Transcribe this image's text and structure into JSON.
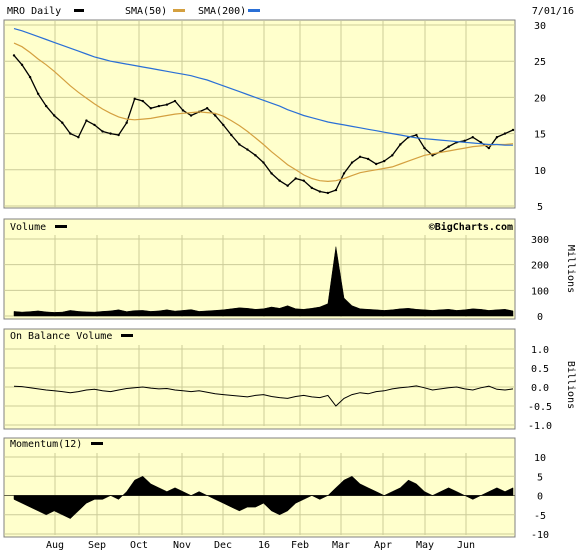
{
  "header": {
    "ticker_label": "MRO Daily",
    "sma50_label": "SMA(50)",
    "sma200_label": "SMA(200)",
    "date": "7/01/16"
  },
  "colors": {
    "background": "#ffffcc",
    "frame": "#808080",
    "grid": "#cccc99",
    "price": "#000000",
    "sma50": "#d4a040",
    "sma200": "#2a6fd6"
  },
  "volume_panel": {
    "label": "Volume",
    "copyright": "©BigCharts.com",
    "unit": "Millions"
  },
  "obv_panel": {
    "label": "On Balance Volume",
    "unit": "Billions"
  },
  "momentum_panel": {
    "label": "Momentum(12)"
  },
  "chart_data": [
    {
      "type": "line",
      "panel": "price",
      "ylim": [
        5,
        30
      ],
      "yticks": [
        "30",
        "25",
        "20",
        "15",
        "10",
        "5"
      ],
      "xticks": [
        "Aug",
        "Sep",
        "Oct",
        "Nov",
        "Dec",
        "16",
        "Feb",
        "Mar",
        "Apr",
        "May",
        "Jun"
      ],
      "series": [
        {
          "name": "MRO Daily",
          "values": [
            25.8,
            24.5,
            22.8,
            20.5,
            18.8,
            17.5,
            16.5,
            15.0,
            14.5,
            16.8,
            16.2,
            15.3,
            15.0,
            14.8,
            16.5,
            19.8,
            19.5,
            18.5,
            18.8,
            19.0,
            19.5,
            18.2,
            17.5,
            18.0,
            18.5,
            17.5,
            16.2,
            14.8,
            13.5,
            12.8,
            12.0,
            11.0,
            9.5,
            8.5,
            7.8,
            8.8,
            8.5,
            7.5,
            7.0,
            6.8,
            7.2,
            9.5,
            11.0,
            11.8,
            11.5,
            10.8,
            11.2,
            12.0,
            13.5,
            14.5,
            14.8,
            13.0,
            12.0,
            12.5,
            13.2,
            13.8,
            14.0,
            14.5,
            13.8,
            13.0,
            14.5,
            15.0,
            15.5
          ]
        },
        {
          "name": "SMA(50)",
          "values": [
            27.5,
            27.0,
            26.2,
            25.3,
            24.5,
            23.6,
            22.6,
            21.6,
            20.7,
            19.9,
            19.1,
            18.4,
            17.8,
            17.3,
            17.0,
            16.9,
            17.0,
            17.1,
            17.3,
            17.5,
            17.7,
            17.8,
            17.9,
            18.0,
            17.9,
            17.8,
            17.4,
            16.8,
            16.1,
            15.3,
            14.4,
            13.5,
            12.5,
            11.6,
            10.7,
            10.0,
            9.3,
            8.8,
            8.5,
            8.4,
            8.5,
            8.8,
            9.2,
            9.6,
            9.8,
            10.0,
            10.2,
            10.4,
            10.8,
            11.2,
            11.6,
            12.0,
            12.2,
            12.4,
            12.6,
            12.8,
            13.0,
            13.2,
            13.3,
            13.4,
            13.5,
            13.5,
            13.6
          ]
        },
        {
          "name": "SMA(200)",
          "values": [
            29.5,
            29.2,
            28.8,
            28.4,
            28.0,
            27.6,
            27.2,
            26.8,
            26.4,
            26.0,
            25.6,
            25.3,
            25.0,
            24.8,
            24.6,
            24.4,
            24.2,
            24.0,
            23.8,
            23.6,
            23.4,
            23.2,
            23.0,
            22.7,
            22.4,
            22.0,
            21.6,
            21.2,
            20.8,
            20.4,
            20.0,
            19.6,
            19.2,
            18.8,
            18.3,
            17.9,
            17.5,
            17.2,
            16.9,
            16.6,
            16.4,
            16.2,
            16.0,
            15.8,
            15.6,
            15.4,
            15.2,
            15.0,
            14.8,
            14.6,
            14.4,
            14.3,
            14.2,
            14.1,
            14.0,
            13.9,
            13.8,
            13.7,
            13.6,
            13.5,
            13.5,
            13.4,
            13.4
          ]
        }
      ]
    },
    {
      "type": "area",
      "panel": "volume",
      "ylim": [
        0,
        300
      ],
      "yticks": [
        "300",
        "200",
        "100",
        "0"
      ],
      "series": [
        {
          "name": "Volume",
          "values": [
            18,
            15,
            17,
            20,
            16,
            14,
            15,
            22,
            18,
            16,
            15,
            18,
            20,
            24,
            17,
            21,
            22,
            18,
            20,
            24,
            19,
            22,
            25,
            18,
            20,
            22,
            24,
            28,
            32,
            30,
            26,
            28,
            35,
            30,
            40,
            28,
            26,
            30,
            35,
            48,
            270,
            70,
            40,
            28,
            26,
            24,
            22,
            24,
            28,
            30,
            26,
            24,
            22,
            24,
            26,
            22,
            24,
            28,
            26,
            22,
            24,
            26,
            20
          ]
        }
      ]
    },
    {
      "type": "line",
      "panel": "obv",
      "ylim": [
        -1.0,
        1.0
      ],
      "yticks": [
        "1.0",
        "0.5",
        "0.0",
        "-0.5",
        "-1.0"
      ],
      "series": [
        {
          "name": "On Balance Volume",
          "values": [
            0.02,
            0.01,
            -0.02,
            -0.05,
            -0.08,
            -0.1,
            -0.12,
            -0.15,
            -0.12,
            -0.08,
            -0.06,
            -0.1,
            -0.12,
            -0.08,
            -0.04,
            -0.02,
            0.0,
            -0.03,
            -0.05,
            -0.04,
            -0.08,
            -0.1,
            -0.12,
            -0.1,
            -0.14,
            -0.18,
            -0.2,
            -0.22,
            -0.24,
            -0.26,
            -0.22,
            -0.2,
            -0.25,
            -0.28,
            -0.3,
            -0.25,
            -0.22,
            -0.26,
            -0.28,
            -0.22,
            -0.5,
            -0.3,
            -0.2,
            -0.15,
            -0.18,
            -0.12,
            -0.1,
            -0.05,
            -0.02,
            0.0,
            0.03,
            -0.02,
            -0.08,
            -0.05,
            -0.02,
            0.0,
            -0.05,
            -0.08,
            -0.02,
            0.02,
            -0.06,
            -0.08,
            -0.05
          ]
        }
      ]
    },
    {
      "type": "area",
      "panel": "momentum",
      "ylim": [
        -10,
        10
      ],
      "yticks": [
        "10",
        "5",
        "0",
        "-5",
        "-10"
      ],
      "series": [
        {
          "name": "Momentum(12)",
          "values": [
            -1,
            -2,
            -3,
            -4,
            -5,
            -4,
            -5,
            -6,
            -4,
            -2,
            -1,
            -1,
            0,
            -1,
            1,
            4,
            5,
            3,
            2,
            1,
            2,
            1,
            0,
            1,
            0,
            -1,
            -2,
            -3,
            -4,
            -3,
            -3,
            -2,
            -4,
            -5,
            -4,
            -2,
            -1,
            0,
            -1,
            0,
            2,
            4,
            5,
            3,
            2,
            1,
            0,
            1,
            2,
            4,
            3,
            1,
            0,
            1,
            2,
            1,
            0,
            -1,
            0,
            1,
            2,
            1,
            2
          ]
        }
      ]
    }
  ]
}
